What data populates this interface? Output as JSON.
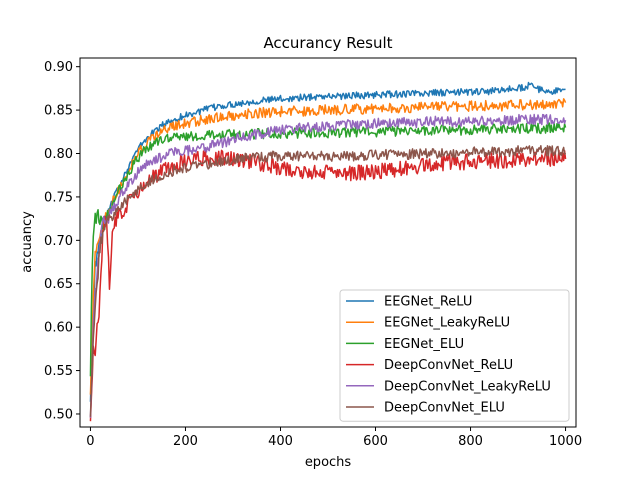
{
  "chart_data": {
    "type": "line",
    "title": "Accurancy Result",
    "xlabel": "epochs",
    "ylabel": "accuancy",
    "xlim": [
      -22,
      1022
    ],
    "ylim": [
      0.485,
      0.91
    ],
    "xticks": [
      0,
      200,
      400,
      600,
      800,
      1000
    ],
    "yticks": [
      0.5,
      0.55,
      0.6,
      0.65,
      0.7,
      0.75,
      0.8,
      0.85,
      0.9
    ],
    "ytick_labels": [
      "0.50",
      "0.55",
      "0.60",
      "0.65",
      "0.70",
      "0.75",
      "0.80",
      "0.85",
      "0.90"
    ],
    "legend_position": "lower-right",
    "grid": false,
    "series": [
      {
        "name": "EEGNet_ReLU",
        "color": "#1f77b4",
        "x": [
          0,
          5,
          10,
          20,
          30,
          40,
          50,
          60,
          70,
          80,
          90,
          100,
          110,
          120,
          130,
          140,
          150,
          160,
          170,
          180,
          190,
          200,
          220,
          240,
          260,
          280,
          300,
          320,
          340,
          360,
          380,
          400,
          430,
          460,
          490,
          520,
          550,
          580,
          610,
          640,
          670,
          700,
          730,
          760,
          790,
          820,
          850,
          880,
          910,
          925,
          940,
          960,
          980,
          1000
        ],
        "y": [
          0.52,
          0.6,
          0.67,
          0.7,
          0.72,
          0.735,
          0.75,
          0.76,
          0.775,
          0.785,
          0.795,
          0.805,
          0.812,
          0.818,
          0.823,
          0.828,
          0.832,
          0.835,
          0.838,
          0.84,
          0.842,
          0.844,
          0.847,
          0.85,
          0.853,
          0.855,
          0.857,
          0.858,
          0.86,
          0.861,
          0.862,
          0.863,
          0.864,
          0.865,
          0.866,
          0.866,
          0.867,
          0.867,
          0.868,
          0.868,
          0.869,
          0.869,
          0.87,
          0.87,
          0.871,
          0.871,
          0.872,
          0.874,
          0.876,
          0.879,
          0.874,
          0.872,
          0.872,
          0.873
        ]
      },
      {
        "name": "EEGNet_LeakyReLU",
        "color": "#ff7f0e",
        "x": [
          0,
          5,
          10,
          20,
          30,
          40,
          50,
          60,
          70,
          80,
          90,
          100,
          110,
          120,
          130,
          140,
          150,
          160,
          170,
          180,
          190,
          200,
          220,
          240,
          260,
          280,
          300,
          330,
          360,
          390,
          420,
          450,
          480,
          510,
          540,
          570,
          600,
          630,
          660,
          690,
          720,
          750,
          780,
          810,
          840,
          870,
          900,
          930,
          960,
          980,
          990,
          1000
        ],
        "y": [
          0.53,
          0.62,
          0.68,
          0.705,
          0.72,
          0.735,
          0.748,
          0.758,
          0.77,
          0.78,
          0.79,
          0.8,
          0.807,
          0.813,
          0.818,
          0.822,
          0.825,
          0.828,
          0.83,
          0.832,
          0.834,
          0.835,
          0.837,
          0.839,
          0.841,
          0.843,
          0.844,
          0.846,
          0.847,
          0.848,
          0.849,
          0.849,
          0.85,
          0.85,
          0.851,
          0.851,
          0.852,
          0.852,
          0.853,
          0.853,
          0.853,
          0.854,
          0.854,
          0.855,
          0.855,
          0.855,
          0.856,
          0.856,
          0.857,
          0.857,
          0.86,
          0.858
        ]
      },
      {
        "name": "EEGNet_ELU",
        "color": "#2ca02c",
        "x": [
          0,
          3,
          6,
          10,
          15,
          20,
          30,
          40,
          50,
          60,
          70,
          80,
          90,
          100,
          110,
          120,
          130,
          140,
          150,
          160,
          170,
          180,
          190,
          200,
          220,
          240,
          260,
          280,
          300,
          330,
          360,
          390,
          420,
          450,
          480,
          510,
          540,
          570,
          600,
          630,
          660,
          690,
          720,
          750,
          780,
          810,
          840,
          870,
          900,
          930,
          960,
          1000
        ],
        "y": [
          0.55,
          0.65,
          0.7,
          0.725,
          0.728,
          0.72,
          0.72,
          0.73,
          0.745,
          0.757,
          0.768,
          0.778,
          0.787,
          0.795,
          0.801,
          0.806,
          0.81,
          0.813,
          0.815,
          0.817,
          0.818,
          0.819,
          0.82,
          0.82,
          0.82,
          0.821,
          0.821,
          0.822,
          0.822,
          0.822,
          0.823,
          0.823,
          0.823,
          0.824,
          0.824,
          0.824,
          0.825,
          0.825,
          0.825,
          0.826,
          0.826,
          0.826,
          0.827,
          0.827,
          0.827,
          0.827,
          0.828,
          0.828,
          0.828,
          0.829,
          0.829,
          0.83
        ]
      },
      {
        "name": "DeepConvNet_ReLU",
        "color": "#d62728",
        "x": [
          0,
          3,
          6,
          10,
          14,
          18,
          22,
          26,
          30,
          35,
          40,
          45,
          50,
          55,
          60,
          70,
          80,
          90,
          100,
          110,
          120,
          130,
          140,
          150,
          160,
          170,
          180,
          190,
          200,
          220,
          240,
          260,
          280,
          300,
          330,
          360,
          390,
          420,
          450,
          480,
          510,
          540,
          570,
          600,
          630,
          660,
          690,
          720,
          750,
          780,
          810,
          840,
          870,
          900,
          930,
          960,
          1000
        ],
        "y": [
          0.5,
          0.53,
          0.57,
          0.56,
          0.6,
          0.62,
          0.67,
          0.7,
          0.72,
          0.72,
          0.64,
          0.7,
          0.72,
          0.725,
          0.73,
          0.735,
          0.742,
          0.75,
          0.756,
          0.762,
          0.767,
          0.772,
          0.776,
          0.779,
          0.782,
          0.785,
          0.787,
          0.789,
          0.791,
          0.793,
          0.794,
          0.795,
          0.795,
          0.795,
          0.792,
          0.788,
          0.785,
          0.782,
          0.78,
          0.778,
          0.777,
          0.777,
          0.778,
          0.779,
          0.781,
          0.783,
          0.785,
          0.787,
          0.789,
          0.79,
          0.791,
          0.792,
          0.792,
          0.793,
          0.793,
          0.794,
          0.795
        ]
      },
      {
        "name": "DeepConvNet_LeakyReLU",
        "color": "#9467bd",
        "x": [
          0,
          3,
          6,
          10,
          14,
          18,
          22,
          26,
          30,
          40,
          50,
          60,
          70,
          80,
          90,
          100,
          110,
          120,
          130,
          140,
          150,
          160,
          170,
          180,
          190,
          200,
          220,
          240,
          260,
          280,
          300,
          330,
          360,
          390,
          420,
          450,
          480,
          510,
          540,
          570,
          600,
          630,
          660,
          690,
          720,
          750,
          780,
          810,
          840,
          870,
          900,
          930,
          960,
          1000
        ],
        "y": [
          0.5,
          0.55,
          0.6,
          0.64,
          0.66,
          0.69,
          0.71,
          0.72,
          0.72,
          0.728,
          0.738,
          0.748,
          0.757,
          0.765,
          0.772,
          0.778,
          0.783,
          0.787,
          0.791,
          0.794,
          0.796,
          0.798,
          0.8,
          0.801,
          0.802,
          0.803,
          0.805,
          0.807,
          0.81,
          0.813,
          0.816,
          0.82,
          0.823,
          0.826,
          0.828,
          0.83,
          0.831,
          0.832,
          0.833,
          0.834,
          0.835,
          0.835,
          0.836,
          0.836,
          0.837,
          0.837,
          0.837,
          0.838,
          0.838,
          0.838,
          0.839,
          0.839,
          0.839,
          0.84
        ]
      },
      {
        "name": "DeepConvNet_ELU",
        "color": "#8c564b",
        "x": [
          0,
          3,
          6,
          10,
          14,
          18,
          22,
          26,
          30,
          40,
          50,
          60,
          70,
          80,
          90,
          100,
          110,
          120,
          130,
          140,
          150,
          160,
          170,
          180,
          190,
          200,
          220,
          240,
          260,
          280,
          300,
          330,
          360,
          390,
          420,
          450,
          480,
          510,
          540,
          570,
          600,
          630,
          660,
          690,
          720,
          750,
          780,
          810,
          840,
          870,
          900,
          930,
          960,
          1000
        ],
        "y": [
          0.5,
          0.54,
          0.58,
          0.62,
          0.65,
          0.68,
          0.7,
          0.71,
          0.72,
          0.725,
          0.73,
          0.736,
          0.742,
          0.748,
          0.753,
          0.758,
          0.762,
          0.766,
          0.769,
          0.772,
          0.775,
          0.777,
          0.779,
          0.781,
          0.782,
          0.783,
          0.785,
          0.787,
          0.789,
          0.791,
          0.793,
          0.795,
          0.796,
          0.797,
          0.797,
          0.797,
          0.797,
          0.797,
          0.797,
          0.798,
          0.798,
          0.799,
          0.799,
          0.8,
          0.8,
          0.801,
          0.801,
          0.802,
          0.802,
          0.802,
          0.803,
          0.803,
          0.803,
          0.803
        ]
      }
    ]
  }
}
